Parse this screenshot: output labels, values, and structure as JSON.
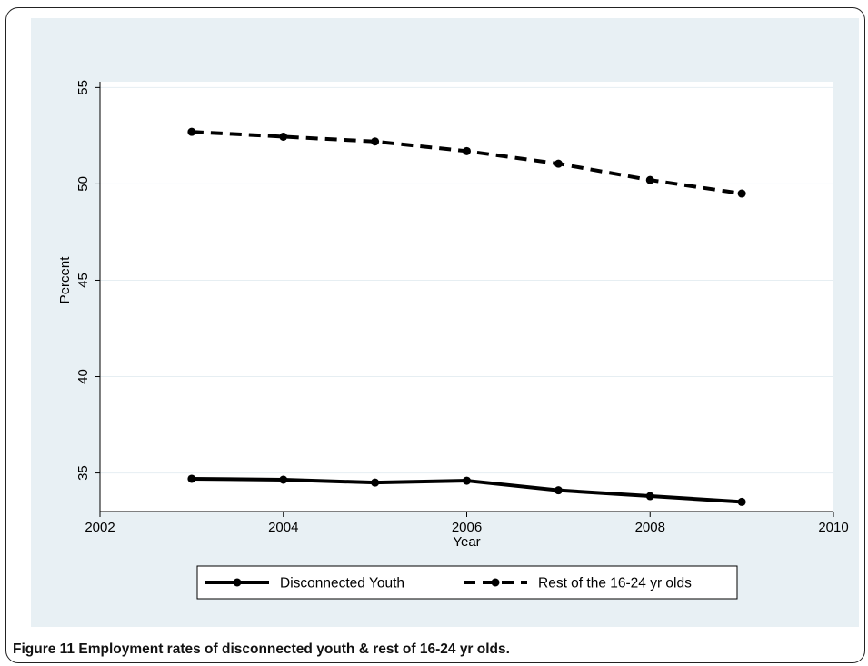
{
  "caption": {
    "text": "Figure 11 Employment rates of disconnected youth & rest of 16-24 yr olds."
  },
  "chart_data": {
    "type": "line",
    "title": "",
    "xlabel": "Year",
    "ylabel": "Percent",
    "xlim": [
      2002,
      2010
    ],
    "ylim": [
      33,
      55.3
    ],
    "x_ticks": [
      2002,
      2004,
      2006,
      2008,
      2010
    ],
    "y_ticks": [
      35,
      40,
      45,
      50,
      55
    ],
    "grid": true,
    "legend_position": "bottom",
    "x": [
      2003,
      2004,
      2005,
      2006,
      2007,
      2008,
      2009
    ],
    "series": [
      {
        "name": "Disconnected Youth",
        "style": "solid",
        "color": "#000000",
        "values": [
          34.7,
          34.65,
          34.5,
          34.6,
          34.1,
          33.8,
          33.5
        ]
      },
      {
        "name": "Rest of the 16-24 yr olds",
        "style": "dashed",
        "color": "#000000",
        "values": [
          52.7,
          52.45,
          52.2,
          51.7,
          51.05,
          50.2,
          49.5
        ]
      }
    ]
  }
}
